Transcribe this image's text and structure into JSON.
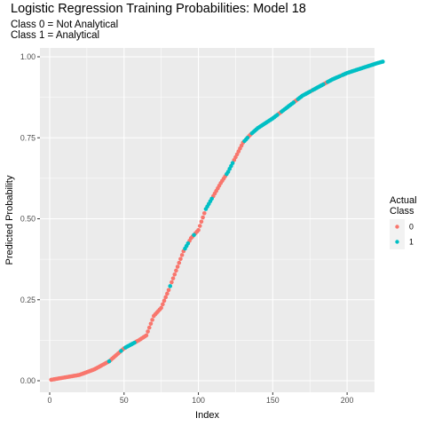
{
  "title": "Logistic Regression Training Probabilities: Model 18",
  "subtitle_lines": [
    "Class 0 = Not Analytical",
    "Class 1 = Analytical"
  ],
  "colors": {
    "class_0": "#F8766D",
    "class_1": "#00BFC4",
    "panel": "#EBEBEB",
    "grid": "#FFFFFF"
  },
  "legend": {
    "title_lines": [
      "Actual",
      "Class"
    ],
    "entries": [
      "0",
      "1"
    ]
  },
  "chart_data": {
    "type": "scatter",
    "title": "Logistic Regression Training Probabilities: Model 18",
    "subtitle": "Class 0 = Not Analytical\nClass 1 = Analytical",
    "xlabel": "Index",
    "ylabel": "Predicted Probability",
    "xlim": [
      0,
      225
    ],
    "ylim": [
      0,
      0.99
    ],
    "x_ticks": [
      0,
      50,
      100,
      150,
      200
    ],
    "x_tick_labels": [
      "0",
      "50",
      "100",
      "150",
      "200"
    ],
    "y_ticks": [
      0,
      0.25,
      0.5,
      0.75,
      1.0
    ],
    "y_tick_labels": [
      "0.00",
      "0.25",
      "0.50",
      "0.75",
      "1.00"
    ],
    "grid": true,
    "legend_position": "right",
    "series": [
      {
        "name": "0",
        "color": "#F8766D",
        "curve": [
          [
            1,
            0.003
          ],
          [
            10,
            0.01
          ],
          [
            20,
            0.018
          ],
          [
            30,
            0.035
          ],
          [
            40,
            0.06
          ],
          [
            50,
            0.1
          ],
          [
            60,
            0.125
          ],
          [
            65,
            0.14
          ],
          [
            70,
            0.2
          ],
          [
            75,
            0.225
          ],
          [
            80,
            0.28
          ],
          [
            85,
            0.34
          ],
          [
            90,
            0.4
          ],
          [
            95,
            0.44
          ],
          [
            100,
            0.465
          ],
          [
            105,
            0.53
          ],
          [
            110,
            0.57
          ],
          [
            115,
            0.61
          ],
          [
            120,
            0.645
          ],
          [
            125,
            0.69
          ],
          [
            130,
            0.735
          ],
          [
            135,
            0.76
          ],
          [
            140,
            0.78
          ],
          [
            150,
            0.81
          ],
          [
            160,
            0.845
          ],
          [
            170,
            0.88
          ],
          [
            180,
            0.905
          ],
          [
            190,
            0.93
          ],
          [
            200,
            0.95
          ],
          [
            210,
            0.965
          ],
          [
            220,
            0.98
          ],
          [
            224,
            0.985
          ]
        ],
        "index_ranges": [
          [
            1,
            39
          ],
          [
            41,
            47
          ],
          [
            49,
            50
          ],
          [
            58,
            80
          ],
          [
            82,
            90
          ],
          [
            94,
            96
          ],
          [
            98,
            104
          ],
          [
            110,
            118
          ],
          [
            124,
            130
          ],
          [
            134,
            135
          ],
          [
            154,
            155
          ],
          [
            165,
            166
          ],
          [
            176,
            176
          ],
          [
            185,
            186
          ],
          [
            196,
            196
          ]
        ]
      },
      {
        "name": "1",
        "color": "#00BFC4",
        "curve": [
          [
            1,
            0.003
          ],
          [
            10,
            0.01
          ],
          [
            20,
            0.018
          ],
          [
            30,
            0.035
          ],
          [
            40,
            0.06
          ],
          [
            50,
            0.1
          ],
          [
            60,
            0.125
          ],
          [
            65,
            0.14
          ],
          [
            70,
            0.2
          ],
          [
            75,
            0.225
          ],
          [
            80,
            0.28
          ],
          [
            85,
            0.34
          ],
          [
            90,
            0.4
          ],
          [
            95,
            0.44
          ],
          [
            100,
            0.465
          ],
          [
            105,
            0.53
          ],
          [
            110,
            0.57
          ],
          [
            115,
            0.61
          ],
          [
            120,
            0.645
          ],
          [
            125,
            0.69
          ],
          [
            130,
            0.735
          ],
          [
            135,
            0.76
          ],
          [
            140,
            0.78
          ],
          [
            150,
            0.81
          ],
          [
            160,
            0.845
          ],
          [
            170,
            0.88
          ],
          [
            180,
            0.905
          ],
          [
            190,
            0.93
          ],
          [
            200,
            0.95
          ],
          [
            210,
            0.965
          ],
          [
            220,
            0.98
          ],
          [
            224,
            0.985
          ]
        ],
        "index_ranges": [
          [
            40,
            40
          ],
          [
            48,
            48
          ],
          [
            51,
            57
          ],
          [
            81,
            81
          ],
          [
            91,
            93
          ],
          [
            97,
            97
          ],
          [
            105,
            109
          ],
          [
            119,
            123
          ],
          [
            131,
            133
          ],
          [
            136,
            153
          ],
          [
            156,
            164
          ],
          [
            167,
            175
          ],
          [
            177,
            184
          ],
          [
            187,
            195
          ],
          [
            197,
            224
          ]
        ]
      }
    ]
  }
}
